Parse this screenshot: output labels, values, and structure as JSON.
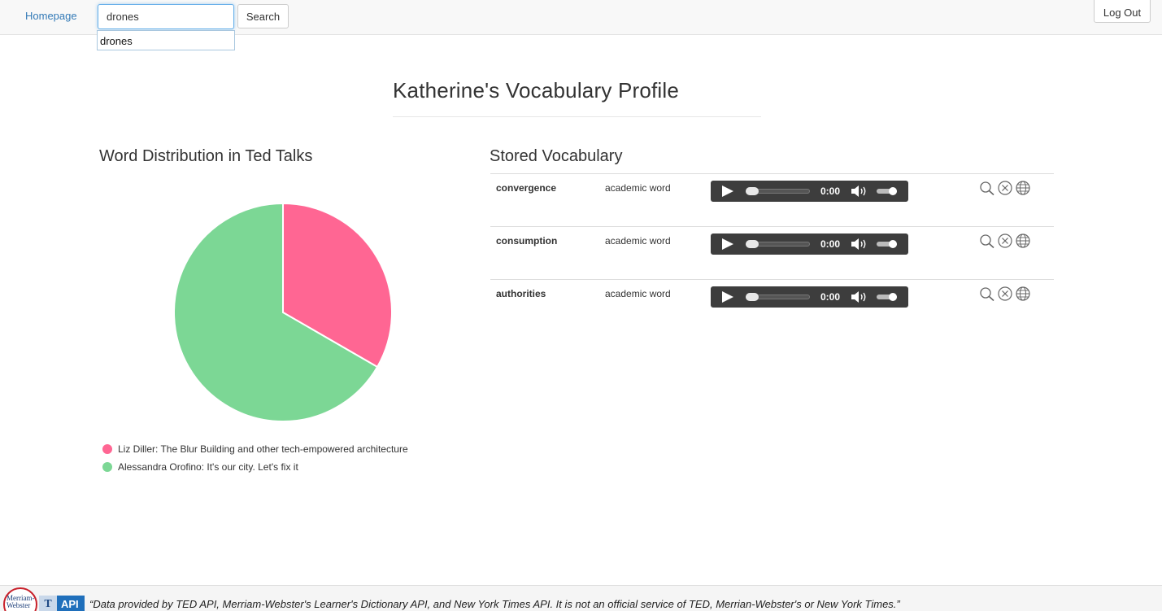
{
  "navbar": {
    "homepage_label": "Homepage",
    "search_value": "drones",
    "search_button_label": "Search",
    "logout_label": "Log Out",
    "autocomplete_items": [
      "drones"
    ]
  },
  "page_title": "Katherine's Vocabulary Profile",
  "chart_section": {
    "title": "Word Distribution in Ted Talks"
  },
  "chart_data": {
    "type": "pie",
    "title": "Word Distribution in Ted Talks",
    "legend_placement": "bottom",
    "slices": [
      {
        "label": "Liz Diller: The Blur Building and other tech-empowered architecture",
        "value": 1,
        "color": "#ff6693"
      },
      {
        "label": "Alessandra Orofino: It's our city. Let's fix it",
        "value": 2,
        "color": "#7cd795"
      }
    ]
  },
  "vocab_section": {
    "title": "Stored Vocabulary",
    "rows": [
      {
        "word": "convergence",
        "category": "academic word",
        "time": "0:00"
      },
      {
        "word": "consumption",
        "category": "academic word",
        "time": "0:00"
      },
      {
        "word": "authorities",
        "category": "academic word",
        "time": "0:00"
      }
    ],
    "icons": [
      "search-icon",
      "close-circle-icon",
      "globe-icon"
    ]
  },
  "footer": {
    "mw_logo_text": "Merriam-Webster",
    "api_badge_letter": "T",
    "api_badge_label": "API",
    "disclaimer": "“Data provided by TED API, Merriam-Webster's Learner's Dictionary API, and New York Times API. It is not an official service of TED, Merrian-Webster's or New York Times.”"
  }
}
